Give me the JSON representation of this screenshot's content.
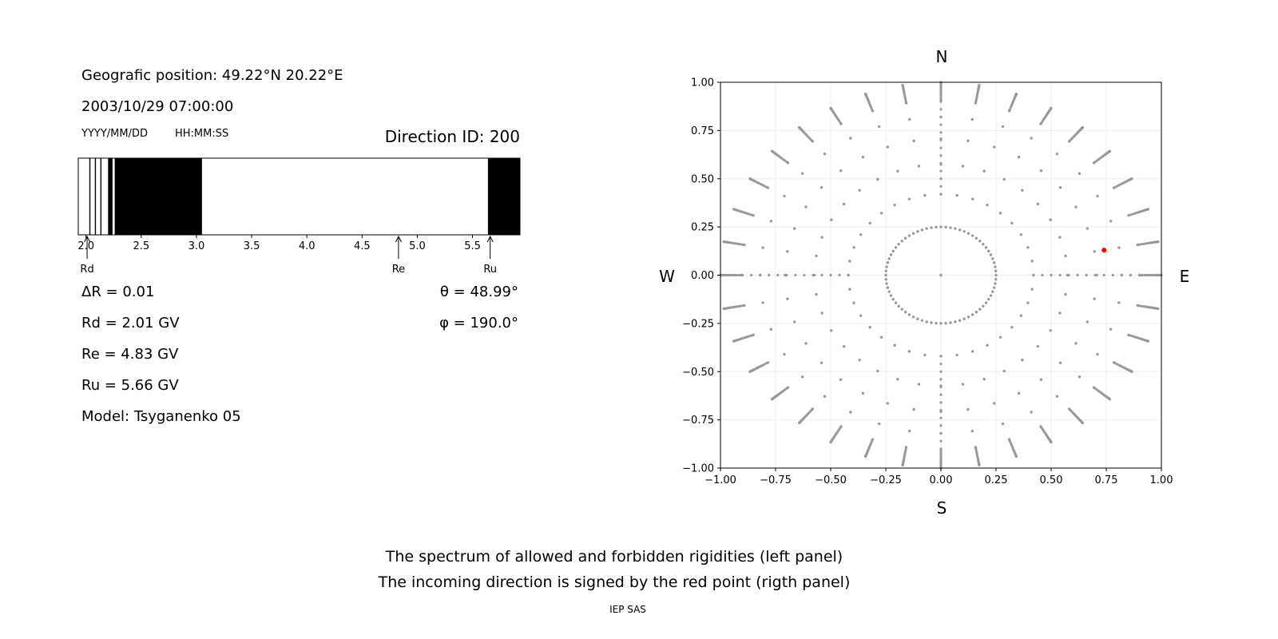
{
  "info": {
    "position": "Geografic position: 49.22°N 20.22°E",
    "datetime": "2003/10/29 07:00:00",
    "date_fmt": "YYYY/MM/DD",
    "time_fmt": "HH:MM:SS",
    "direction_id": "Direction ID: 200",
    "delta_r": "ΔR = 0.01",
    "rd": "Rd = 2.01 GV",
    "re": "Re = 4.83 GV",
    "ru": "Ru = 5.66 GV",
    "model": "Model: Tsyganenko 05",
    "theta": "θ = 48.99°",
    "phi": "φ = 190.0°"
  },
  "footer": {
    "line1": "The spectrum of allowed and forbidden rigidities (left panel)",
    "line2": "The incoming direction is signed by the red point (rigth panel)",
    "credit": "IEP SAS"
  },
  "chart_data": [
    {
      "type": "bar",
      "description_free": true,
      "xlim": [
        1.93,
        5.93
      ],
      "x_ticks": [
        2.0,
        2.5,
        3.0,
        3.5,
        4.0,
        4.5,
        5.0,
        5.5
      ],
      "x_tick_labels": [
        "2.0",
        "2.5",
        "3.0",
        "3.5",
        "4.0",
        "4.5",
        "5.0",
        "5.5"
      ],
      "forbidden_intervals": [
        [
          2.03,
          2.04
        ],
        [
          2.08,
          2.09
        ],
        [
          2.13,
          2.14
        ],
        [
          2.2,
          2.24
        ],
        [
          2.26,
          3.05
        ],
        [
          5.64,
          5.93
        ]
      ],
      "markers": [
        {
          "label": "Rd",
          "value": 2.01
        },
        {
          "label": "Re",
          "value": 4.83
        },
        {
          "label": "Ru",
          "value": 5.66
        }
      ],
      "colors": {
        "forbidden": "#000000",
        "allowed": "#ffffff"
      }
    },
    {
      "type": "scatter",
      "xlim": [
        -1.0,
        1.0
      ],
      "ylim": [
        -1.0,
        1.0
      ],
      "x_ticks": [
        "−1.00",
        "−0.75",
        "−0.50",
        "−0.25",
        "0.00",
        "0.25",
        "0.50",
        "0.75",
        "1.00"
      ],
      "y_ticks": [
        "1.00",
        "0.75",
        "0.50",
        "0.25",
        "0.00",
        "−0.25",
        "−0.50",
        "−0.75",
        "−1.00"
      ],
      "grid": true,
      "compass": {
        "north": "N",
        "south": "S",
        "west": "W",
        "east": "E"
      },
      "grid_series": {
        "zenith_angles_deg": [
          0,
          15,
          25,
          35,
          45,
          55,
          65,
          75,
          80
        ],
        "azimuths_deg_step": 10,
        "radial_rule": "sin(zenith)",
        "extra_zenith_range_deg": [
          75,
          90
        ],
        "color": "#999999"
      },
      "highlight": {
        "x": 0.74,
        "y": 0.13,
        "color": "#ff0000"
      }
    }
  ]
}
